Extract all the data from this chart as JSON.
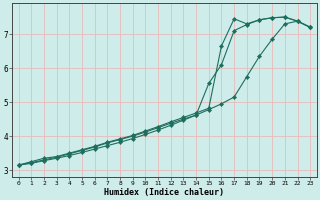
{
  "xlabel": "Humidex (Indice chaleur)",
  "ylabel": "",
  "bg_color": "#cdecea",
  "grid_color": "#e8bbbb",
  "line_color": "#1e6e5e",
  "xlim": [
    -0.5,
    23.5
  ],
  "ylim": [
    2.8,
    7.9
  ],
  "xticks": [
    0,
    1,
    2,
    3,
    4,
    5,
    6,
    7,
    8,
    9,
    10,
    11,
    12,
    13,
    14,
    15,
    16,
    17,
    18,
    19,
    20,
    21,
    22,
    23
  ],
  "yticks": [
    3,
    4,
    5,
    6,
    7
  ],
  "series1_x": [
    0,
    1,
    2,
    3,
    4,
    5,
    6,
    7,
    8,
    9,
    10,
    11,
    12,
    13,
    14,
    15,
    16,
    17,
    18,
    19,
    20,
    21,
    22,
    23
  ],
  "series1_y": [
    3.15,
    3.25,
    3.35,
    3.4,
    3.5,
    3.6,
    3.7,
    3.82,
    3.92,
    4.02,
    4.15,
    4.28,
    4.42,
    4.55,
    4.68,
    4.82,
    6.65,
    7.45,
    7.3,
    7.42,
    7.48,
    7.5,
    7.38,
    7.2
  ],
  "series2_x": [
    0,
    1,
    2,
    3,
    4,
    5,
    6,
    7,
    8,
    9,
    10,
    11,
    12,
    13,
    14,
    15,
    16,
    17,
    18,
    19,
    20,
    21,
    22,
    23
  ],
  "series2_y": [
    3.15,
    3.22,
    3.3,
    3.38,
    3.48,
    3.58,
    3.68,
    3.8,
    3.9,
    4.0,
    4.12,
    4.25,
    4.38,
    4.5,
    4.62,
    5.55,
    6.1,
    7.1,
    7.28,
    7.42,
    7.48,
    7.5,
    7.38,
    7.2
  ],
  "series3_x": [
    0,
    1,
    2,
    3,
    4,
    5,
    6,
    7,
    8,
    9,
    10,
    11,
    12,
    13,
    14,
    15,
    16,
    17,
    18,
    19,
    20,
    21,
    22,
    23
  ],
  "series3_y": [
    3.15,
    3.2,
    3.28,
    3.35,
    3.43,
    3.52,
    3.62,
    3.72,
    3.82,
    3.93,
    4.05,
    4.18,
    4.32,
    4.47,
    4.62,
    4.78,
    4.95,
    5.15,
    5.75,
    6.35,
    6.85,
    7.3,
    7.38,
    7.2
  ]
}
